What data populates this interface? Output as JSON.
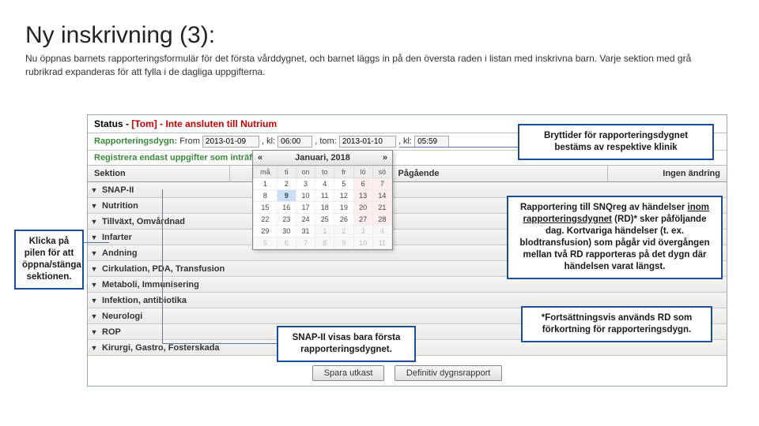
{
  "slide": {
    "title": "Ny inskrivning (3):",
    "subtitle": "Nu öppnas barnets rapporteringsformulär för det första vårddygnet, och barnet läggs in på den översta raden i listan med inskrivna barn. Varje sektion med grå rubrikrad expanderas för att fylla i de dagliga uppgifterna."
  },
  "panel": {
    "status_label": "Status - ",
    "status_value": "[Tom] - Inte ansluten till Nutrium",
    "rep_label": "Rapporteringsdygn:",
    "from_lbl": "From",
    "from_date": "2013-01-09",
    "kl1_lbl": ", kl:",
    "from_time": "06:00",
    "tom_lbl": ", tom:",
    "tom_date": "2013-01-10",
    "kl2_lbl": ", kl:",
    "tom_time": "05:59",
    "info_line": "Registrera endast uppgifter som inträffar under rapporteringsdygnet.",
    "hdr_section": "Sektion",
    "hdr_pag": "Pågående",
    "hdr_ing": "Ingen ändring",
    "sections": [
      {
        "label": "SNAP-II"
      },
      {
        "label": "Nutrition"
      },
      {
        "label": "Tillväxt, Omvårdnad"
      },
      {
        "label": "Infarter"
      },
      {
        "label": "Andning"
      },
      {
        "label": "Cirkulation, PDA, Transfusion"
      },
      {
        "label": "Metaboli, Immunisering"
      },
      {
        "label": "Infektion, antibiotika"
      },
      {
        "label": "Neurologi"
      },
      {
        "label": "ROP"
      },
      {
        "label": "Kirurgi, Gastro, Fosterskada"
      }
    ],
    "buttons": {
      "save": "Spara utkast",
      "final": "Definitiv dygnsrapport"
    }
  },
  "calendar": {
    "month": "Januari, 2018",
    "days": [
      "må",
      "ti",
      "on",
      "to",
      "fr",
      "lö",
      "sö"
    ],
    "rows": [
      [
        {
          "d": "1"
        },
        {
          "d": "2"
        },
        {
          "d": "3"
        },
        {
          "d": "4"
        },
        {
          "d": "5"
        },
        {
          "d": "6",
          "w": 1
        },
        {
          "d": "7",
          "w": 1
        }
      ],
      [
        {
          "d": "8"
        },
        {
          "d": "9",
          "t": 1
        },
        {
          "d": "10"
        },
        {
          "d": "11"
        },
        {
          "d": "12"
        },
        {
          "d": "13",
          "w": 1
        },
        {
          "d": "14",
          "w": 1
        }
      ],
      [
        {
          "d": "15"
        },
        {
          "d": "16"
        },
        {
          "d": "17"
        },
        {
          "d": "18"
        },
        {
          "d": "19"
        },
        {
          "d": "20",
          "w": 1
        },
        {
          "d": "21",
          "w": 1
        }
      ],
      [
        {
          "d": "22"
        },
        {
          "d": "23"
        },
        {
          "d": "24"
        },
        {
          "d": "25"
        },
        {
          "d": "26"
        },
        {
          "d": "27",
          "w": 1
        },
        {
          "d": "28",
          "w": 1
        }
      ],
      [
        {
          "d": "29"
        },
        {
          "d": "30"
        },
        {
          "d": "31"
        },
        {
          "d": "1",
          "o": 1
        },
        {
          "d": "2",
          "o": 1
        },
        {
          "d": "3",
          "o": 1
        },
        {
          "d": "4",
          "o": 1
        }
      ],
      [
        {
          "d": "5",
          "o": 1
        },
        {
          "d": "6",
          "o": 1
        },
        {
          "d": "7",
          "o": 1
        },
        {
          "d": "8",
          "o": 1
        },
        {
          "d": "9",
          "o": 1
        },
        {
          "d": "10",
          "o": 1
        },
        {
          "d": "11",
          "o": 1
        }
      ]
    ]
  },
  "callouts": {
    "left": "Klicka på pilen för att öppna/stänga sektionen.",
    "top": "Bryttider för rapporteringsdygnet bestäms av respektive klinik",
    "snap": "SNAP-II visas bara första rapporteringsdygnet.",
    "right1_a": "Rapportering till SNQreg av händelser ",
    "right1_b": "inom rapporteringsdygnet",
    "right1_c": " (RD)* sker påföljande dag. Kortvariga händelser (t. ex. blodtransfusion) som pågår vid övergången mellan två RD rapporteras på det dygn där händelsen varat längst.",
    "right2": "*Fortsättningsvis används RD som förkortning för rapporteringsdygn."
  },
  "colors": {
    "border": "#1a4d9c",
    "green": "#3a8a3a",
    "red": "#c00"
  }
}
